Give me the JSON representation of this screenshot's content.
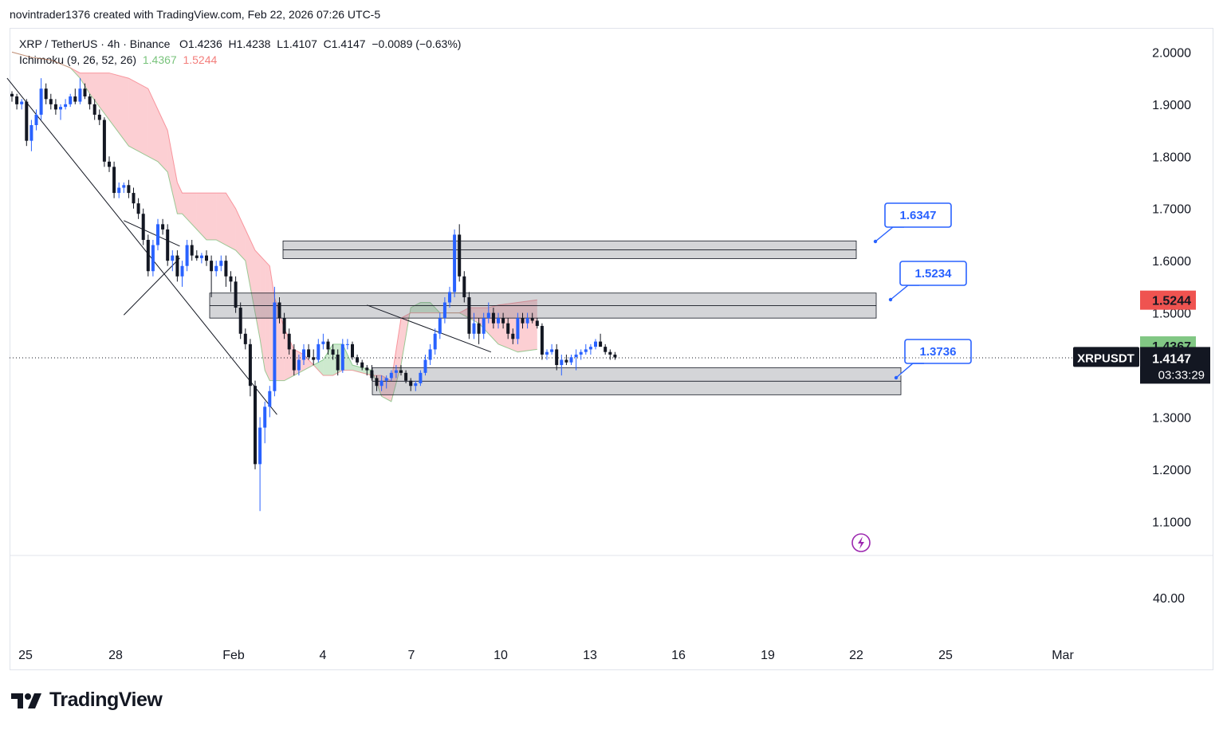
{
  "credit": "novintrader1376 created with TradingView.com, Feb 22, 2026 07:26 UTC-5",
  "legend": {
    "symbol_line": "XRP / TetherUS · 4h · Binance",
    "open": "O1.4236",
    "high": "H1.4238",
    "low": "L1.4107",
    "close": "C1.4147",
    "change": "−0.0089 (−0.63%)",
    "indicator": "Ichimoku (9, 26, 52, 26)",
    "span_a_value": "1.4367",
    "span_b_value": "1.5244"
  },
  "brand": {
    "name": "TradingView",
    "icon": "tradingview-logo-icon"
  },
  "chart_data": {
    "type": "candlestick",
    "title": "XRP / TetherUS · 4h · Binance",
    "ylim": [
      1.05,
      2.05
    ],
    "y_ticks": [
      "2.0000",
      "1.9000",
      "1.8000",
      "1.7000",
      "1.6000",
      "1.5000",
      "1.3000",
      "1.2000",
      "1.1000"
    ],
    "x_ticks": [
      "25",
      "28",
      "Feb",
      "4",
      "7",
      "10",
      "13",
      "16",
      "19",
      "22",
      "25",
      "Mar"
    ],
    "price_tags": [
      {
        "label": "1.5244",
        "value": 1.5244,
        "color": "#ef5350"
      },
      {
        "label": "1.4367",
        "value": 1.4367,
        "color": "#81c784"
      }
    ],
    "last_price": {
      "symbol": "XRPUSDT",
      "price": "1.4147",
      "countdown": "03:33:29",
      "value": 1.4147
    },
    "lower_pane": {
      "tick": "40.00"
    },
    "callouts": [
      {
        "label": "1.6347",
        "value": 1.6347
      },
      {
        "label": "1.5234",
        "value": 1.5234
      },
      {
        "label": "1.3736",
        "value": 1.3736
      }
    ],
    "zones": [
      {
        "name": "upper-zone",
        "low": 1.604,
        "high": 1.638
      },
      {
        "name": "middle-zone",
        "low": 1.49,
        "high": 1.538
      },
      {
        "name": "lower-zone",
        "low": 1.343,
        "high": 1.395
      }
    ],
    "trendlines": [
      {
        "name": "main-downtrend",
        "from": [
          -1,
          1.95
        ],
        "to": [
          54.5,
          1.305
        ]
      },
      {
        "name": "wedge-top",
        "from": [
          23,
          1.677
        ],
        "to": [
          34.5,
          1.628
        ]
      },
      {
        "name": "wedge-bottom",
        "from": [
          23,
          1.496
        ],
        "to": [
          34.5,
          1.605
        ]
      },
      {
        "name": "range-descending",
        "from": [
          73,
          1.515
        ],
        "to": [
          98.5,
          1.425
        ]
      }
    ],
    "ichimoku_cloud": {
      "x": [
        0,
        4,
        8,
        12,
        14,
        16,
        20,
        24,
        28,
        30,
        32,
        34,
        35,
        36,
        38,
        40,
        42,
        44,
        46,
        48,
        50,
        51,
        52,
        53,
        54,
        56,
        58,
        60,
        62,
        64,
        66,
        68,
        70,
        72,
        74,
        76,
        78,
        80,
        82,
        84,
        86,
        88,
        90,
        92,
        94,
        96,
        98,
        100,
        104,
        108
      ],
      "span_a": [
        2.0,
        1.99,
        1.985,
        1.97,
        1.95,
        1.92,
        1.87,
        1.82,
        1.8,
        1.79,
        1.77,
        1.69,
        1.69,
        1.68,
        1.66,
        1.64,
        1.64,
        1.63,
        1.62,
        1.6,
        1.5,
        1.45,
        1.39,
        1.37,
        1.37,
        1.37,
        1.38,
        1.39,
        1.4,
        1.41,
        1.44,
        1.44,
        1.4,
        1.395,
        1.39,
        1.34,
        1.33,
        1.4,
        1.51,
        1.52,
        1.52,
        1.5,
        1.5,
        1.5,
        1.49,
        1.48,
        1.46,
        1.44,
        1.425,
        1.43
      ],
      "span_b": [
        2.0,
        1.99,
        1.985,
        1.97,
        1.96,
        1.96,
        1.96,
        1.95,
        1.93,
        1.89,
        1.85,
        1.75,
        1.73,
        1.73,
        1.73,
        1.73,
        1.73,
        1.73,
        1.7,
        1.66,
        1.62,
        1.61,
        1.6,
        1.59,
        1.53,
        1.47,
        1.43,
        1.42,
        1.4,
        1.38,
        1.38,
        1.39,
        1.39,
        1.385,
        1.38,
        1.38,
        1.37,
        1.49,
        1.5,
        1.5,
        1.5,
        1.5,
        1.5,
        1.5,
        1.51,
        1.51,
        1.51,
        1.515,
        1.52,
        1.525
      ]
    },
    "candles": [
      [
        1.92,
        1.925,
        1.905,
        1.915
      ],
      [
        1.915,
        1.92,
        1.89,
        1.9
      ],
      [
        1.9,
        1.91,
        1.89,
        1.905
      ],
      [
        1.905,
        1.91,
        1.82,
        1.83
      ],
      [
        1.83,
        1.87,
        1.81,
        1.86
      ],
      [
        1.86,
        1.89,
        1.85,
        1.88
      ],
      [
        1.88,
        1.95,
        1.87,
        1.93
      ],
      [
        1.93,
        1.94,
        1.9,
        1.91
      ],
      [
        1.91,
        1.92,
        1.89,
        1.9
      ],
      [
        1.9,
        1.91,
        1.88,
        1.89
      ],
      [
        1.89,
        1.9,
        1.87,
        1.895
      ],
      [
        1.895,
        1.91,
        1.89,
        1.9
      ],
      [
        1.9,
        1.92,
        1.895,
        1.915
      ],
      [
        1.915,
        1.93,
        1.9,
        1.905
      ],
      [
        1.905,
        1.95,
        1.9,
        1.93
      ],
      [
        1.93,
        1.94,
        1.91,
        1.915
      ],
      [
        1.915,
        1.92,
        1.89,
        1.9
      ],
      [
        1.9,
        1.91,
        1.87,
        1.88
      ],
      [
        1.88,
        1.89,
        1.86,
        1.87
      ],
      [
        1.87,
        1.875,
        1.78,
        1.79
      ],
      [
        1.79,
        1.8,
        1.77,
        1.78
      ],
      [
        1.78,
        1.79,
        1.72,
        1.73
      ],
      [
        1.73,
        1.75,
        1.72,
        1.74
      ],
      [
        1.74,
        1.75,
        1.73,
        1.745
      ],
      [
        1.745,
        1.755,
        1.72,
        1.73
      ],
      [
        1.73,
        1.74,
        1.7,
        1.71
      ],
      [
        1.71,
        1.72,
        1.68,
        1.69
      ],
      [
        1.69,
        1.7,
        1.63,
        1.64
      ],
      [
        1.64,
        1.65,
        1.57,
        1.58
      ],
      [
        1.58,
        1.64,
        1.57,
        1.63
      ],
      [
        1.63,
        1.68,
        1.62,
        1.67
      ],
      [
        1.67,
        1.68,
        1.65,
        1.66
      ],
      [
        1.66,
        1.67,
        1.59,
        1.6
      ],
      [
        1.6,
        1.62,
        1.58,
        1.61
      ],
      [
        1.61,
        1.62,
        1.56,
        1.57
      ],
      [
        1.57,
        1.6,
        1.55,
        1.59
      ],
      [
        1.59,
        1.64,
        1.58,
        1.63
      ],
      [
        1.63,
        1.64,
        1.6,
        1.61
      ],
      [
        1.61,
        1.62,
        1.6,
        1.605
      ],
      [
        1.605,
        1.615,
        1.595,
        1.61
      ],
      [
        1.61,
        1.62,
        1.59,
        1.6
      ],
      [
        1.6,
        1.61,
        1.53,
        1.58
      ],
      [
        1.58,
        1.6,
        1.57,
        1.59
      ],
      [
        1.59,
        1.61,
        1.58,
        1.6
      ],
      [
        1.6,
        1.61,
        1.55,
        1.57
      ],
      [
        1.57,
        1.58,
        1.54,
        1.56
      ],
      [
        1.56,
        1.57,
        1.5,
        1.51
      ],
      [
        1.51,
        1.52,
        1.45,
        1.46
      ],
      [
        1.46,
        1.47,
        1.43,
        1.44
      ],
      [
        1.44,
        1.45,
        1.34,
        1.36
      ],
      [
        1.36,
        1.37,
        1.2,
        1.21
      ],
      [
        1.21,
        1.3,
        1.12,
        1.28
      ],
      [
        1.28,
        1.33,
        1.25,
        1.32
      ],
      [
        1.32,
        1.36,
        1.3,
        1.35
      ],
      [
        1.35,
        1.55,
        1.34,
        1.52
      ],
      [
        1.52,
        1.53,
        1.48,
        1.49
      ],
      [
        1.49,
        1.5,
        1.45,
        1.46
      ],
      [
        1.46,
        1.47,
        1.42,
        1.43
      ],
      [
        1.43,
        1.44,
        1.38,
        1.39
      ],
      [
        1.39,
        1.42,
        1.38,
        1.41
      ],
      [
        1.41,
        1.44,
        1.4,
        1.43
      ],
      [
        1.43,
        1.44,
        1.41,
        1.415
      ],
      [
        1.415,
        1.43,
        1.4,
        1.41
      ],
      [
        1.41,
        1.45,
        1.405,
        1.44
      ],
      [
        1.44,
        1.46,
        1.43,
        1.445
      ],
      [
        1.445,
        1.45,
        1.42,
        1.43
      ],
      [
        1.43,
        1.44,
        1.41,
        1.42
      ],
      [
        1.42,
        1.43,
        1.38,
        1.39
      ],
      [
        1.39,
        1.45,
        1.385,
        1.44
      ],
      [
        1.44,
        1.45,
        1.43,
        1.44
      ],
      [
        1.44,
        1.445,
        1.41,
        1.415
      ],
      [
        1.415,
        1.42,
        1.4,
        1.405
      ],
      [
        1.405,
        1.41,
        1.39,
        1.395
      ],
      [
        1.395,
        1.4,
        1.38,
        1.39
      ],
      [
        1.39,
        1.4,
        1.37,
        1.375
      ],
      [
        1.375,
        1.38,
        1.35,
        1.36
      ],
      [
        1.36,
        1.38,
        1.35,
        1.37
      ],
      [
        1.37,
        1.38,
        1.355,
        1.375
      ],
      [
        1.375,
        1.39,
        1.37,
        1.385
      ],
      [
        1.385,
        1.4,
        1.375,
        1.39
      ],
      [
        1.39,
        1.4,
        1.38,
        1.385
      ],
      [
        1.385,
        1.39,
        1.365,
        1.37
      ],
      [
        1.37,
        1.375,
        1.35,
        1.36
      ],
      [
        1.36,
        1.37,
        1.35,
        1.365
      ],
      [
        1.365,
        1.39,
        1.36,
        1.385
      ],
      [
        1.385,
        1.42,
        1.38,
        1.41
      ],
      [
        1.41,
        1.44,
        1.4,
        1.43
      ],
      [
        1.43,
        1.47,
        1.42,
        1.46
      ],
      [
        1.46,
        1.5,
        1.45,
        1.49
      ],
      [
        1.49,
        1.53,
        1.48,
        1.52
      ],
      [
        1.52,
        1.55,
        1.51,
        1.54
      ],
      [
        1.54,
        1.66,
        1.53,
        1.65
      ],
      [
        1.65,
        1.67,
        1.56,
        1.57
      ],
      [
        1.57,
        1.58,
        1.52,
        1.53
      ],
      [
        1.53,
        1.54,
        1.45,
        1.46
      ],
      [
        1.46,
        1.5,
        1.45,
        1.48
      ],
      [
        1.48,
        1.49,
        1.44,
        1.46
      ],
      [
        1.46,
        1.5,
        1.45,
        1.49
      ],
      [
        1.49,
        1.52,
        1.48,
        1.5
      ],
      [
        1.5,
        1.51,
        1.47,
        1.48
      ],
      [
        1.48,
        1.5,
        1.47,
        1.49
      ],
      [
        1.49,
        1.5,
        1.47,
        1.48
      ],
      [
        1.48,
        1.49,
        1.45,
        1.46
      ],
      [
        1.46,
        1.47,
        1.44,
        1.45
      ],
      [
        1.45,
        1.5,
        1.44,
        1.49
      ],
      [
        1.49,
        1.5,
        1.47,
        1.48
      ],
      [
        1.48,
        1.5,
        1.47,
        1.49
      ],
      [
        1.49,
        1.5,
        1.48,
        1.485
      ],
      [
        1.485,
        1.49,
        1.47,
        1.475
      ],
      [
        1.475,
        1.48,
        1.41,
        1.42
      ],
      [
        1.42,
        1.43,
        1.41,
        1.425
      ],
      [
        1.425,
        1.44,
        1.42,
        1.43
      ],
      [
        1.43,
        1.44,
        1.39,
        1.4
      ],
      [
        1.4,
        1.42,
        1.38,
        1.41
      ],
      [
        1.41,
        1.42,
        1.4,
        1.405
      ],
      [
        1.405,
        1.42,
        1.4,
        1.415
      ],
      [
        1.415,
        1.43,
        1.39,
        1.42
      ],
      [
        1.42,
        1.43,
        1.41,
        1.425
      ],
      [
        1.425,
        1.44,
        1.42,
        1.43
      ],
      [
        1.43,
        1.44,
        1.42,
        1.435
      ],
      [
        1.435,
        1.45,
        1.43,
        1.445
      ],
      [
        1.445,
        1.46,
        1.44,
        1.435
      ],
      [
        1.435,
        1.44,
        1.42,
        1.425
      ],
      [
        1.425,
        1.43,
        1.41,
        1.42
      ],
      [
        1.42,
        1.425,
        1.41,
        1.4147
      ]
    ]
  }
}
